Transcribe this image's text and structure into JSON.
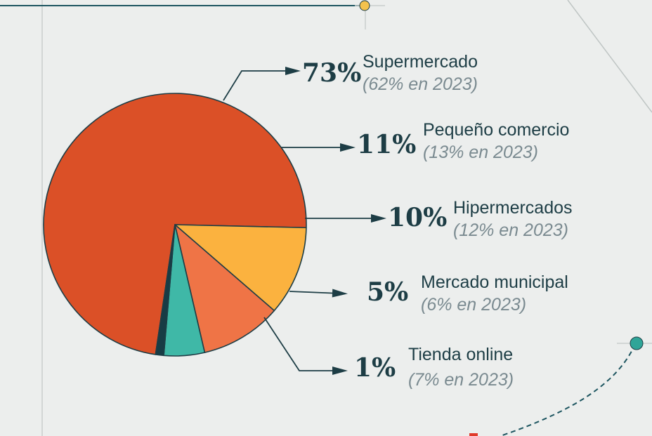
{
  "chart_data": {
    "type": "pie",
    "slices": [
      {
        "label": "Supermercado",
        "value": 73,
        "value_label": "73%",
        "previous": "(62% en 2023)",
        "color": "#db5027"
      },
      {
        "label": "Pequeño comercio",
        "value": 11,
        "value_label": "11%",
        "previous": "(13% en 2023)",
        "color": "#fbb23f"
      },
      {
        "label": "Hipermercados",
        "value": 10,
        "value_label": "10%",
        "previous": "(12% en 2023)",
        "color": "#ef7446"
      },
      {
        "label": "Mercado municipal",
        "value": 5,
        "value_label": "5%",
        "previous": "(6% en 2023)",
        "color": "#3fb8a7"
      },
      {
        "label": "Tienda online",
        "value": 1,
        "value_label": "1%",
        "previous": "(7% en 2023)",
        "color": "#173c45"
      }
    ]
  },
  "colors": {
    "background": "#eceeed",
    "ink": "#1d3d45",
    "muted": "#7a8a90",
    "decor_yellow": "#f4c24d",
    "decor_teal": "#2fa598"
  }
}
